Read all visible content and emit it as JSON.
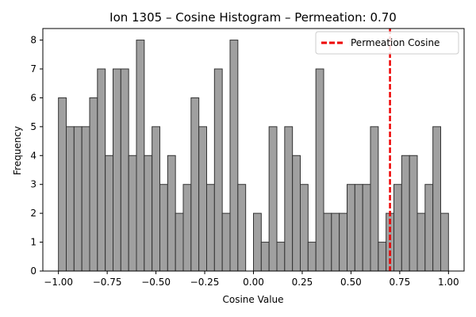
{
  "chart_data": {
    "type": "bar",
    "title": "Ion 1305 – Cosine Histogram – Permeation: 0.70",
    "xlabel": "Cosine Value",
    "ylabel": "Frequency",
    "xlim": [
      -1.08,
      1.08
    ],
    "ylim": [
      0,
      8.4
    ],
    "xticks": [
      -1.0,
      -0.75,
      -0.5,
      -0.25,
      0.0,
      0.25,
      0.5,
      0.75,
      1.0
    ],
    "xtick_labels": [
      "−1.00",
      "−0.75",
      "−0.50",
      "−0.25",
      "0.00",
      "0.25",
      "0.50",
      "0.75",
      "1.00"
    ],
    "yticks": [
      0,
      1,
      2,
      3,
      4,
      5,
      6,
      7,
      8
    ],
    "ytick_labels": [
      "0",
      "1",
      "2",
      "3",
      "4",
      "5",
      "6",
      "7",
      "8"
    ],
    "bin_start": -1.0,
    "bin_width": 0.04,
    "values": [
      6,
      5,
      5,
      5,
      6,
      7,
      4,
      7,
      7,
      4,
      8,
      4,
      5,
      3,
      4,
      2,
      3,
      6,
      5,
      3,
      7,
      2,
      8,
      3,
      0,
      2,
      1,
      5,
      1,
      5,
      4,
      3,
      1,
      7,
      2,
      2,
      2,
      3,
      3,
      3,
      5,
      1,
      2,
      3,
      4,
      4,
      2,
      3,
      5,
      2
    ],
    "bar_color": "#a0a0a0",
    "bar_edge_color": "#333333",
    "reference_line": {
      "x": 0.7,
      "color": "#ee0000",
      "style": "dashed",
      "label": "Permeation Cosine"
    },
    "legend": {
      "position": "top-right",
      "entries": [
        "Permeation Cosine"
      ]
    },
    "grid": false
  }
}
